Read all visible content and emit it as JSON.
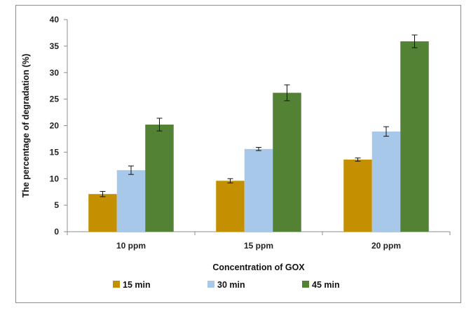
{
  "chart_data": {
    "type": "bar",
    "title": "",
    "xlabel": "Concentration of GOX",
    "ylabel": "The percentage of degradation (%)",
    "categories": [
      "10 ppm",
      "15 ppm",
      "20 ppm"
    ],
    "ylim": [
      0,
      40
    ],
    "yticks": [
      0,
      5,
      10,
      15,
      20,
      25,
      30,
      35,
      40
    ],
    "grid": false,
    "legend_position": "bottom",
    "series": [
      {
        "name": "15 min",
        "color": "#c48f00",
        "values": [
          7.1,
          9.6,
          13.6
        ],
        "errors": [
          0.5,
          0.4,
          0.3
        ]
      },
      {
        "name": "30 min",
        "color": "#a7c8e8",
        "values": [
          11.6,
          15.6,
          18.9
        ],
        "errors": [
          0.8,
          0.3,
          0.9
        ]
      },
      {
        "name": "45 min",
        "color": "#548235",
        "values": [
          20.2,
          26.2,
          35.9
        ],
        "errors": [
          1.2,
          1.5,
          1.2
        ]
      }
    ]
  }
}
